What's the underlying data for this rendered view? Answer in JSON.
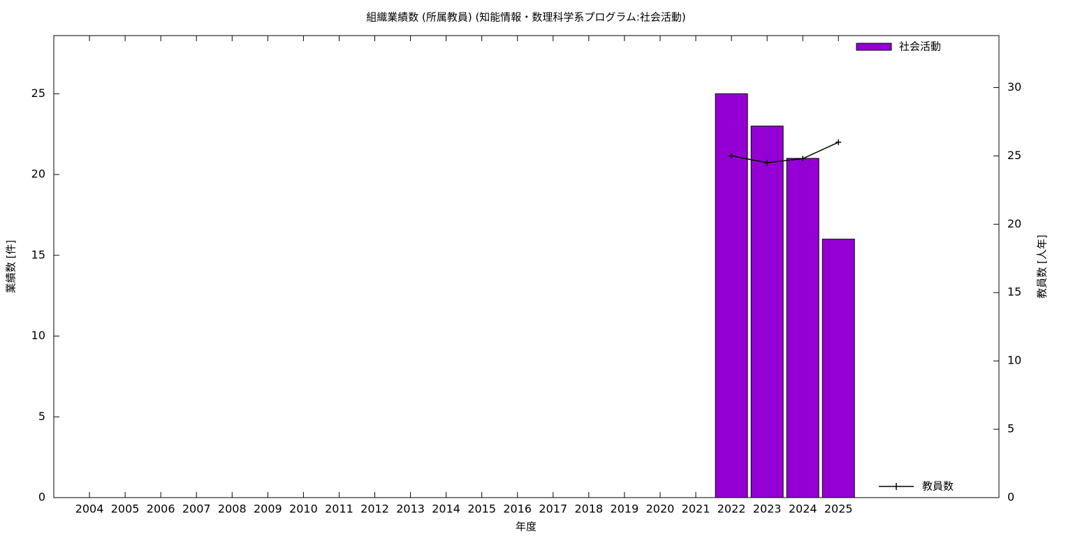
{
  "chart_data": {
    "type": "bar",
    "title": "組織業績数 (所属教員) (知能情報・数理科学系プログラム:社会活動)",
    "xlabel": "年度",
    "ylabel": "業績数 [件]",
    "y2label": "教員数 [人年]",
    "categories": [
      "2004",
      "2005",
      "2006",
      "2007",
      "2008",
      "2009",
      "2010",
      "2011",
      "2012",
      "2013",
      "2014",
      "2015",
      "2016",
      "2017",
      "2018",
      "2019",
      "2020",
      "2021",
      "2022",
      "2023",
      "2024",
      "2025"
    ],
    "series": [
      {
        "name": "社会活動",
        "type": "bar",
        "color": "#9400d3",
        "values": [
          null,
          null,
          null,
          null,
          null,
          null,
          null,
          null,
          null,
          null,
          null,
          null,
          null,
          null,
          null,
          null,
          null,
          null,
          25,
          23,
          21,
          16
        ]
      },
      {
        "name": "教員数",
        "type": "line",
        "color": "#000000",
        "axis": "y2",
        "values": [
          null,
          null,
          null,
          null,
          null,
          null,
          null,
          null,
          null,
          null,
          null,
          null,
          null,
          null,
          null,
          null,
          null,
          null,
          25,
          24.5,
          24.8,
          26
        ]
      }
    ],
    "ylim": [
      0,
      28.6
    ],
    "yticks": [
      0,
      5,
      10,
      15,
      20,
      25
    ],
    "y2lim": [
      0,
      33.8
    ],
    "y2ticks": [
      0,
      5,
      10,
      15,
      20,
      25,
      30
    ]
  }
}
